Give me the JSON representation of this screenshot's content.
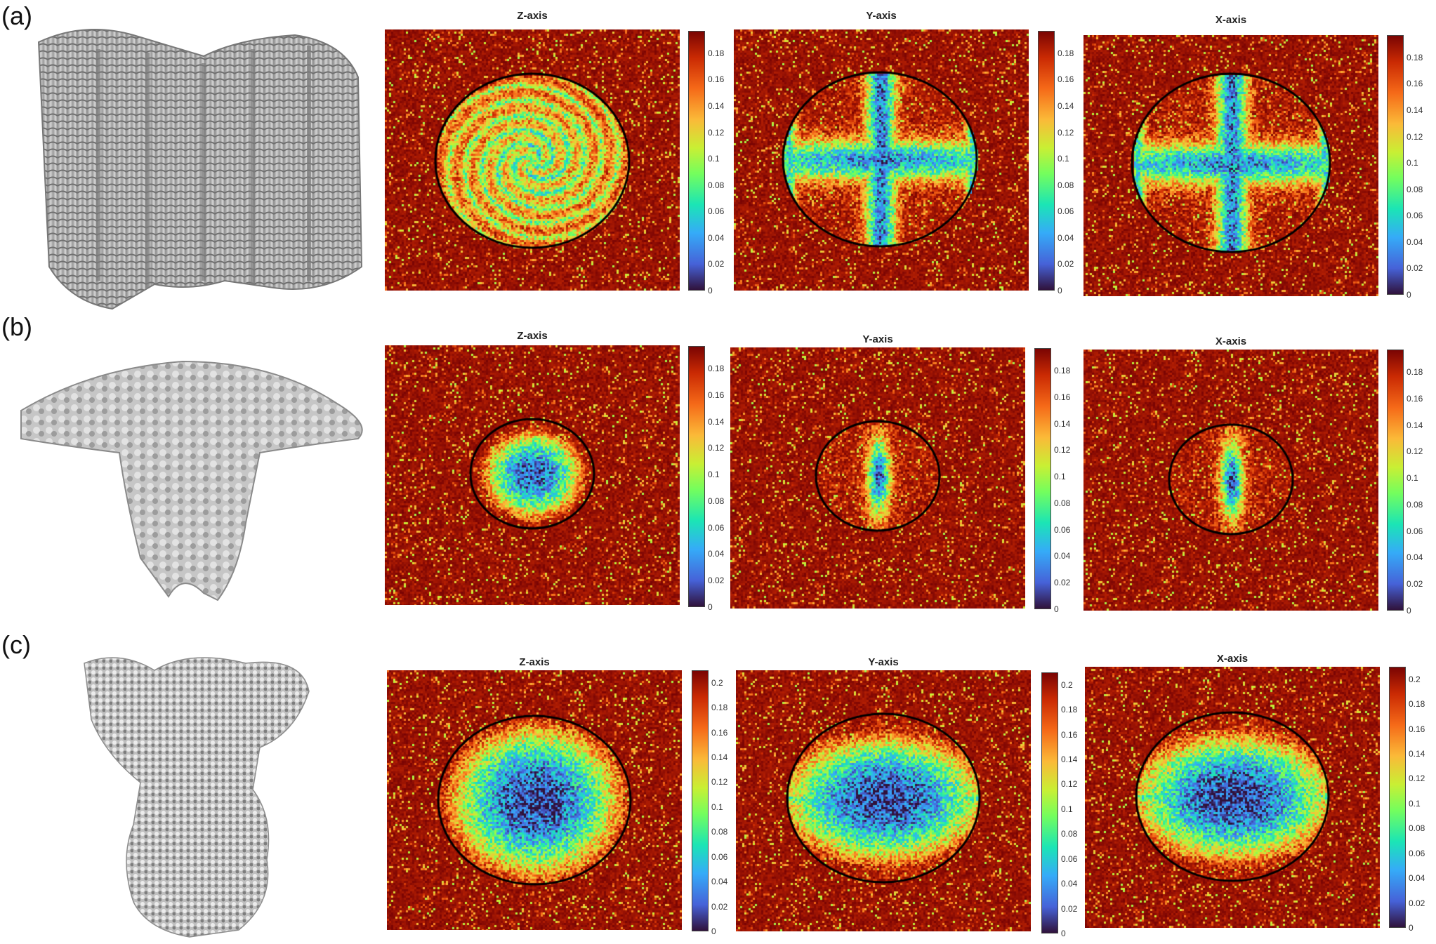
{
  "rows": [
    {
      "label": "(a)",
      "panels": [
        {
          "title": "Z-axis",
          "ticks": [
            "0",
            "0.02",
            "0.04",
            "0.06",
            "0.08",
            "0.1",
            "0.12",
            "0.14",
            "0.16",
            "0.18"
          ]
        },
        {
          "title": "Y-axis",
          "ticks": [
            "0",
            "0.02",
            "0.04",
            "0.06",
            "0.08",
            "0.1",
            "0.12",
            "0.14",
            "0.16",
            "0.18"
          ]
        },
        {
          "title": "X-axis",
          "ticks": [
            "0",
            "0.02",
            "0.04",
            "0.06",
            "0.08",
            "0.1",
            "0.12",
            "0.14",
            "0.16",
            "0.18"
          ]
        }
      ]
    },
    {
      "label": "(b)",
      "panels": [
        {
          "title": "Z-axis",
          "ticks": [
            "0",
            "0.02",
            "0.04",
            "0.06",
            "0.08",
            "0.1",
            "0.12",
            "0.14",
            "0.16",
            "0.18"
          ]
        },
        {
          "title": "Y-axis",
          "ticks": [
            "0",
            "0.02",
            "0.04",
            "0.06",
            "0.08",
            "0.1",
            "0.12",
            "0.14",
            "0.16",
            "0.18"
          ]
        },
        {
          "title": "X-axis",
          "ticks": [
            "0",
            "0.02",
            "0.04",
            "0.06",
            "0.08",
            "0.1",
            "0.12",
            "0.14",
            "0.16",
            "0.18"
          ]
        }
      ]
    },
    {
      "label": "(c)",
      "panels": [
        {
          "title": "Z-axis",
          "ticks": [
            "0",
            "0.02",
            "0.04",
            "0.06",
            "0.08",
            "0.1",
            "0.12",
            "0.14",
            "0.16",
            "0.18",
            "0.2"
          ]
        },
        {
          "title": "Y-axis",
          "ticks": [
            "0",
            "0.02",
            "0.04",
            "0.06",
            "0.08",
            "0.1",
            "0.12",
            "0.14",
            "0.16",
            "0.18",
            "0.2"
          ]
        },
        {
          "title": "X-axis",
          "ticks": [
            "0",
            "0.02",
            "0.04",
            "0.06",
            "0.08",
            "0.1",
            "0.12",
            "0.14",
            "0.16",
            "0.18",
            "0.2"
          ]
        }
      ]
    }
  ],
  "colors": {
    "background_high": "#8b0a04",
    "circle": "#000000",
    "molecule": "#b8b8b8"
  }
}
